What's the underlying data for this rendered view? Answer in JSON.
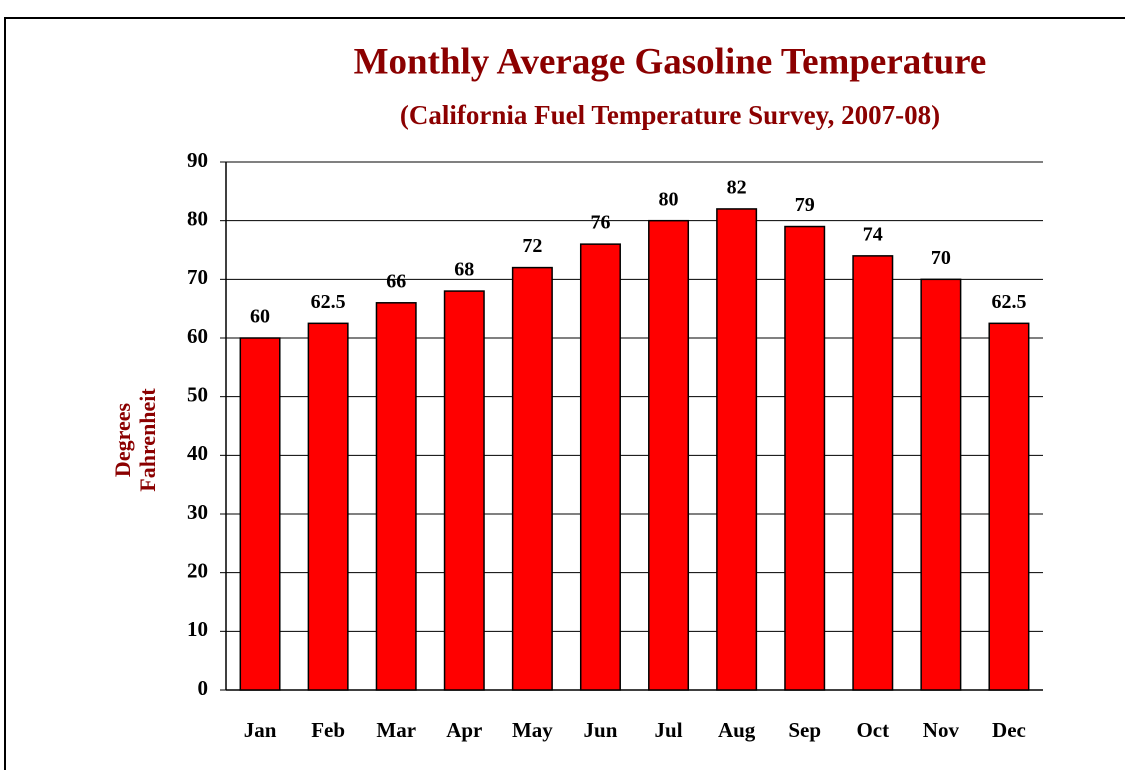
{
  "chart_data": {
    "type": "bar",
    "title": "Monthly Average Gasoline Temperature",
    "subtitle": "(California Fuel Temperature Survey, 2007-08)",
    "y_label": [
      "Degrees",
      "Fahrenheit"
    ],
    "categories": [
      "Jan",
      "Feb",
      "Mar",
      "Apr",
      "May",
      "Jun",
      "Jul",
      "Aug",
      "Sep",
      "Oct",
      "Nov",
      "Dec"
    ],
    "values": [
      60,
      62.5,
      66,
      68,
      72,
      76,
      80,
      82,
      79,
      74,
      70,
      62.5
    ],
    "color": "#ff0000",
    "ylim": [
      0,
      90
    ],
    "yticks": [
      0,
      10,
      20,
      30,
      40,
      50,
      60,
      70,
      80,
      90
    ],
    "grid": true
  }
}
